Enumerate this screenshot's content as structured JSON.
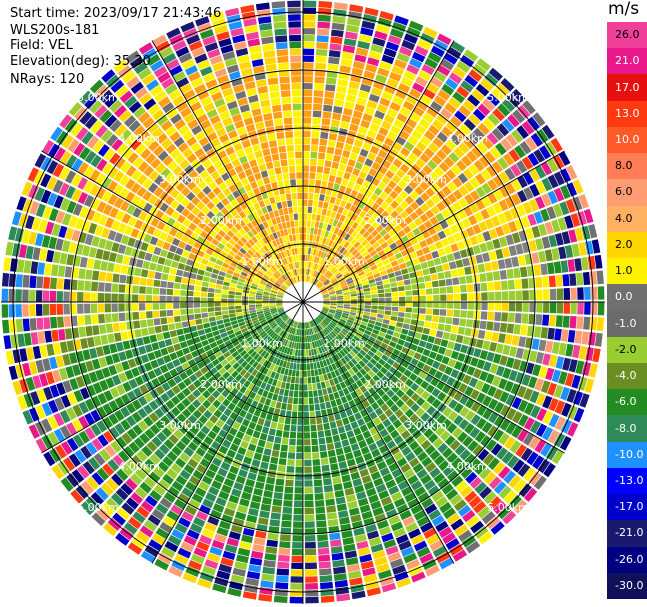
{
  "header": {
    "start_time": "Start time: 2023/09/17 21:43:46",
    "instrument": "WLS200s-181",
    "field": "Field: VEL",
    "elevation": "Elevation(deg): 35.30",
    "nrays": "NRays: 120"
  },
  "colorbar": {
    "unit": "m/s",
    "ticks": [
      "26.0",
      "21.0",
      "17.0",
      "13.0",
      "10.0",
      "8.0",
      "6.0",
      "4.0",
      "2.0",
      "1.0",
      "0.0",
      "-1.0",
      "-2.0",
      "-4.0",
      "-6.0",
      "-8.0",
      "-10.0",
      "-13.0",
      "-17.0",
      "-21.0",
      "-26.0",
      "-30.0"
    ],
    "colors": [
      "#f0409a",
      "#e8188a",
      "#e61010",
      "#ff3a10",
      "#ff5a28",
      "#ff7c54",
      "#ff9d72",
      "#ffb060",
      "#ffd600",
      "#fff200",
      "#707070",
      "#6b6b6b",
      "#9acd32",
      "#6b8e23",
      "#228b22",
      "#2e8b57",
      "#1e90ff",
      "#0000ff",
      "#0000cd",
      "#191970",
      "#000080",
      "#10105a"
    ]
  },
  "chart_data": {
    "type": "ppi",
    "field": "VEL",
    "nrays": 120,
    "range_ring_labels": [
      "1.00km",
      "2.00km",
      "3.00km",
      "4.00km",
      "5.00km"
    ],
    "range_rings_km": [
      1,
      2,
      3,
      4,
      5
    ],
    "unit": "m/s",
    "vmin": -30.0,
    "vmax": 26.0,
    "grid": true
  }
}
